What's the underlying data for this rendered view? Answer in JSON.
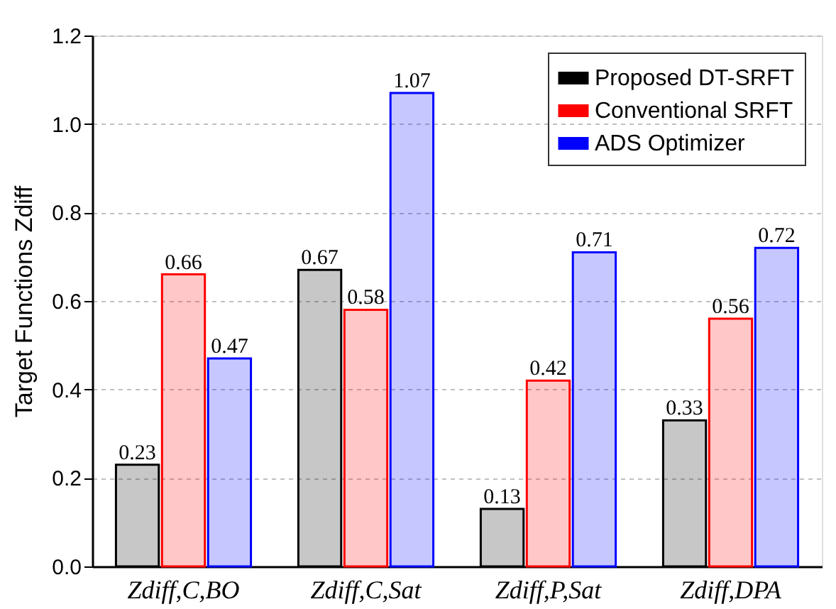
{
  "chart_data": {
    "type": "bar",
    "ylabel": "Target Functions Zdiff",
    "categories": [
      "Zdiff,C,BO",
      "Zdiff,C,Sat",
      "Zdiff,P,Sat",
      "Zdiff,DPA"
    ],
    "series": [
      {
        "name": "Proposed DT-SRFT",
        "color": "#000000",
        "values": [
          0.23,
          0.67,
          0.13,
          0.33
        ]
      },
      {
        "name": "Conventional SRFT",
        "color": "#ff0000",
        "values": [
          0.66,
          0.58,
          0.42,
          0.56
        ]
      },
      {
        "name": "ADS Optimizer",
        "color": "#0000ff",
        "values": [
          0.47,
          1.07,
          0.71,
          0.72
        ]
      }
    ],
    "ylim": [
      0,
      1.2
    ],
    "yticks": [
      {
        "value": 0,
        "label": "0.0"
      },
      0.2,
      0.4,
      0.6,
      0.8,
      {
        "value": 1,
        "label": "1.0"
      },
      1.2
    ],
    "grid": "y",
    "legend": "top right",
    "data_labels": true
  }
}
